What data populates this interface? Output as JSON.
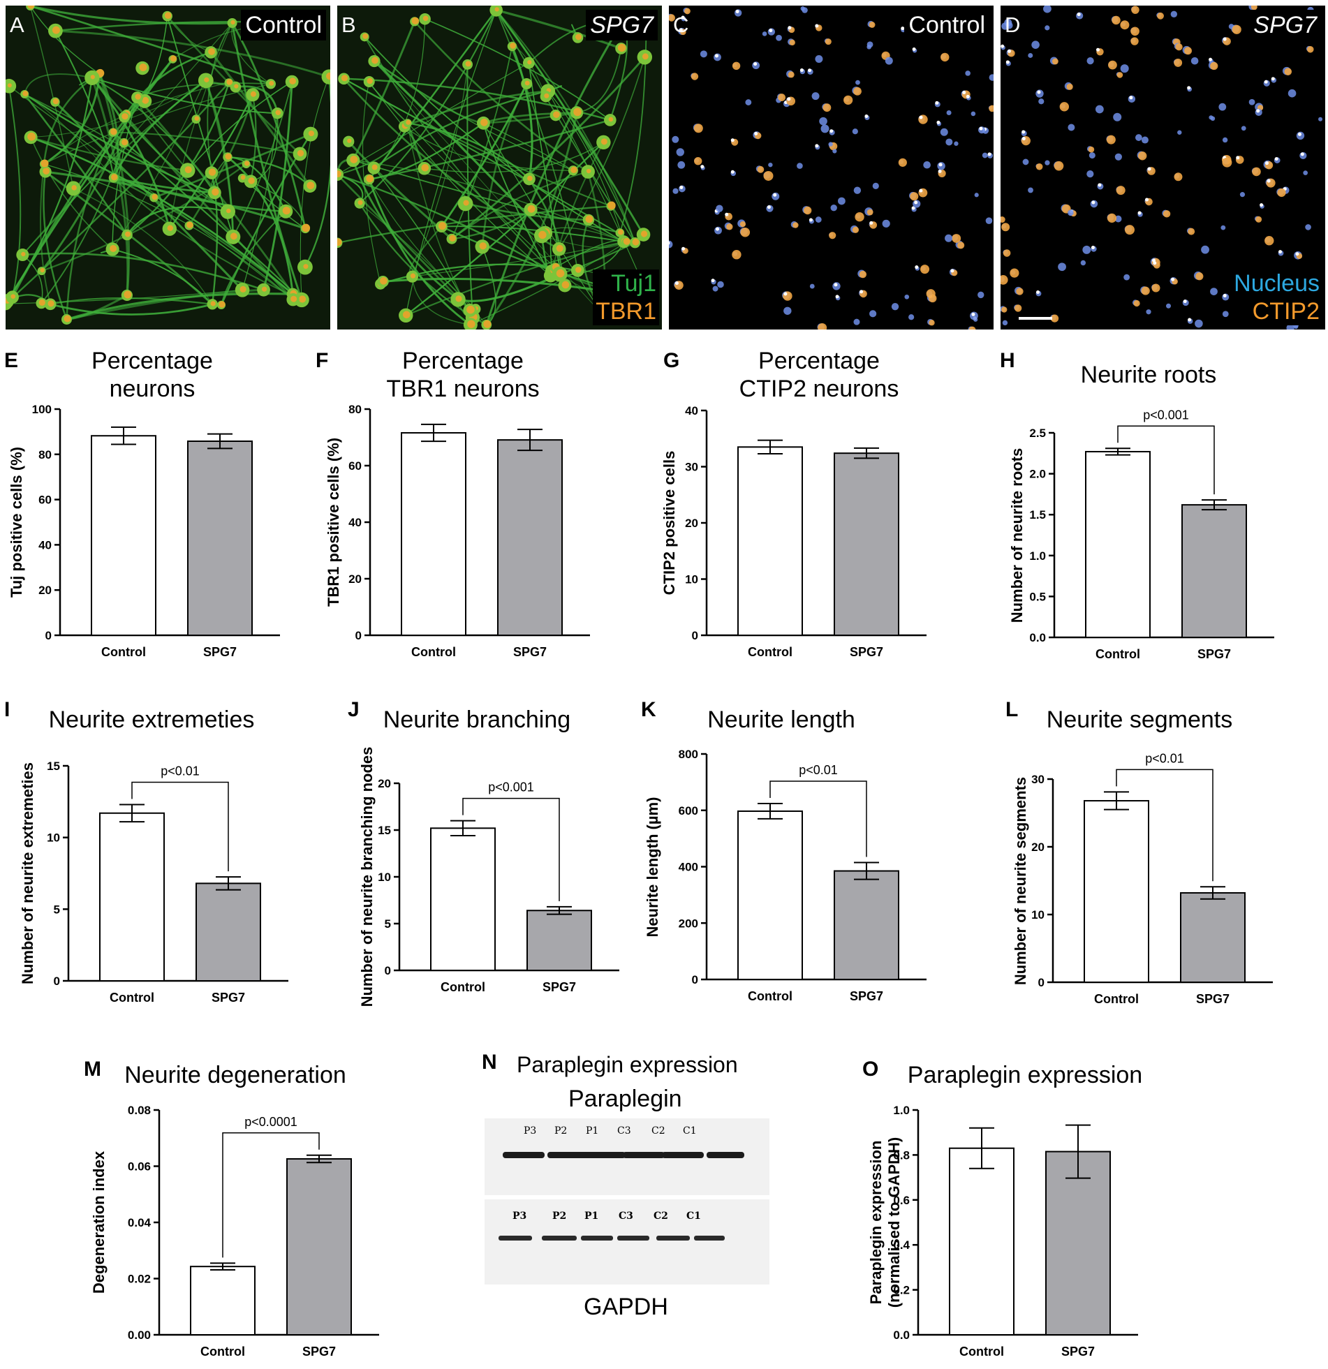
{
  "micrographs": [
    {
      "letter": "A",
      "condition": "Control",
      "condition_italic": false,
      "stain": "green",
      "legend": []
    },
    {
      "letter": "B",
      "condition": "SPG7",
      "condition_italic": true,
      "stain": "green",
      "legend": [
        {
          "text": "Tuj1",
          "color": "#2fb24a"
        },
        {
          "text": "TBR1",
          "color": "#f39a2c"
        }
      ]
    },
    {
      "letter": "C",
      "condition": "Control",
      "condition_italic": false,
      "stain": "nuclei",
      "legend": []
    },
    {
      "letter": "D",
      "condition": "SPG7",
      "condition_italic": true,
      "stain": "nuclei",
      "legend": [
        {
          "text": "Nucleus",
          "color": "#2da8e0"
        },
        {
          "text": "CTIP2",
          "color": "#f39a2c"
        }
      ],
      "scale_bar": true
    }
  ],
  "colors": {
    "control_bar": "#ffffff",
    "spg7_bar": "#a7a7ab",
    "tuj1": "#2fb24a",
    "tbr1": "#f39a2c",
    "nucleus": "#2da8e0",
    "ctip2": "#f39a2c"
  },
  "chart_data": [
    {
      "id": "E",
      "type": "bar",
      "title": "Percentage\nneurons",
      "ylabel": "Tuj positive cells (%)",
      "categories": [
        "Control",
        "SPG7"
      ],
      "values": [
        88.2,
        85.8
      ],
      "errors": [
        3.8,
        3.2
      ],
      "ylim": [
        0,
        100
      ],
      "yticks": [
        0,
        20,
        40,
        60,
        80,
        100
      ],
      "ytick_labels": [
        "0",
        "20",
        "40",
        "60",
        "80",
        "100"
      ]
    },
    {
      "id": "F",
      "type": "bar",
      "title": "Percentage\nTBR1 neurons",
      "ylabel": "TBR1 positive cells (%)",
      "categories": [
        "Control",
        "SPG7"
      ],
      "values": [
        71.6,
        69.1
      ],
      "errors": [
        3.0,
        3.7
      ],
      "ylim": [
        0,
        80
      ],
      "yticks": [
        0,
        20,
        40,
        60,
        80
      ],
      "ytick_labels": [
        "0",
        "20",
        "40",
        "60",
        "80"
      ]
    },
    {
      "id": "G",
      "type": "bar",
      "title": "Percentage\nCTIP2 neurons",
      "ylabel": "CTIP2 positive cells",
      "categories": [
        "Control",
        "SPG7"
      ],
      "values": [
        33.5,
        32.4
      ],
      "errors": [
        1.2,
        0.9
      ],
      "ylim": [
        0,
        40
      ],
      "yticks": [
        0,
        10,
        20,
        30,
        40
      ],
      "ytick_labels": [
        "0",
        "10",
        "20",
        "30",
        "40"
      ]
    },
    {
      "id": "H",
      "type": "bar",
      "title": "Neurite roots",
      "ylabel": "Number of neurite roots",
      "categories": [
        "Control",
        "SPG7"
      ],
      "values": [
        2.27,
        1.62
      ],
      "errors": [
        0.04,
        0.06
      ],
      "ylim": [
        0,
        2.5
      ],
      "yticks": [
        0,
        0.5,
        1.0,
        1.5,
        2.0,
        2.5
      ],
      "ytick_labels": [
        "0.0",
        "0.5",
        "1.0",
        "1.5",
        "2.0",
        "2.5"
      ],
      "significance": "p<0.001"
    },
    {
      "id": "I",
      "type": "bar",
      "title": "Neurite extremeties",
      "ylabel": "Number of neurite extremeties",
      "categories": [
        "Control",
        "SPG7"
      ],
      "values": [
        11.7,
        6.8
      ],
      "errors": [
        0.6,
        0.45
      ],
      "ylim": [
        0,
        15
      ],
      "yticks": [
        0,
        5,
        10,
        15
      ],
      "ytick_labels": [
        "0",
        "5",
        "10",
        "15"
      ],
      "significance": "p<0.01"
    },
    {
      "id": "J",
      "type": "bar",
      "title": "Neurite branching",
      "ylabel": "Number of neurite branching nodes",
      "categories": [
        "Control",
        "SPG7"
      ],
      "values": [
        15.2,
        6.4
      ],
      "errors": [
        0.8,
        0.4
      ],
      "ylim": [
        0,
        20
      ],
      "yticks": [
        0,
        5,
        10,
        15,
        20
      ],
      "ytick_labels": [
        "0",
        "5",
        "10",
        "15",
        "20"
      ],
      "significance": "p<0.001"
    },
    {
      "id": "K",
      "type": "bar",
      "title": "Neurite length",
      "ylabel": "Neurite length (µm)",
      "categories": [
        "Control",
        "SPG7"
      ],
      "values": [
        597,
        385
      ],
      "errors": [
        27,
        30
      ],
      "ylim": [
        0,
        800
      ],
      "yticks": [
        0,
        200,
        400,
        600,
        800
      ],
      "ytick_labels": [
        "0",
        "200",
        "400",
        "600",
        "800"
      ],
      "significance": "p<0.01"
    },
    {
      "id": "L",
      "type": "bar",
      "title": "Neurite segments",
      "ylabel": "Number of neurite segments",
      "categories": [
        "Control",
        "SPG7"
      ],
      "values": [
        26.8,
        13.2
      ],
      "errors": [
        1.3,
        0.9
      ],
      "ylim": [
        0,
        30
      ],
      "yticks": [
        0,
        10,
        20,
        30
      ],
      "ytick_labels": [
        "0",
        "10",
        "20",
        "30"
      ],
      "significance": "p<0.01"
    },
    {
      "id": "M",
      "type": "bar",
      "title": "Neurite degeneration",
      "ylabel": "Degeneration index",
      "categories": [
        "Control",
        "SPG7"
      ],
      "values": [
        0.0243,
        0.0626
      ],
      "errors": [
        0.0012,
        0.0013
      ],
      "ylim": [
        0,
        0.08
      ],
      "yticks": [
        0,
        0.02,
        0.04,
        0.06,
        0.08
      ],
      "ytick_labels": [
        "0.00",
        "0.02",
        "0.04",
        "0.06",
        "0.08"
      ],
      "significance": "p<0.0001"
    },
    {
      "id": "O",
      "type": "bar",
      "title": "Paraplegin expression",
      "ylabel": "Paraplegin expression\n(normalised to GAPDH)",
      "categories": [
        "Control",
        "SPG7"
      ],
      "values": [
        0.83,
        0.815
      ],
      "errors": [
        0.09,
        0.118
      ],
      "ylim": [
        0,
        1.0
      ],
      "yticks": [
        0,
        0.2,
        0.4,
        0.6,
        0.8,
        1.0
      ],
      "ytick_labels": [
        "0.0",
        "0.2",
        "0.4",
        "0.6",
        "0.8",
        "1.0"
      ]
    }
  ],
  "blot": {
    "letter": "N",
    "title": "Paraplegin expression",
    "top_label": "Paraplegin",
    "bottom_label": "GAPDH",
    "lanes_top": [
      "P3",
      "P2",
      "P1",
      "C3",
      "C2",
      "C1"
    ],
    "lanes_bottom": [
      "P3",
      "P2",
      "P1",
      "C3",
      "C2",
      "C1"
    ]
  }
}
